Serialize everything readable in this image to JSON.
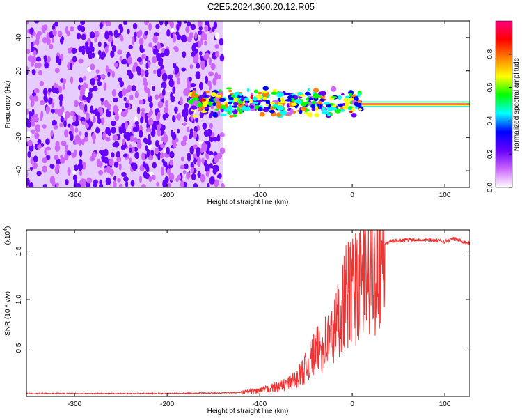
{
  "title": "C2E5.2024.360.20.12.R05",
  "chart_data": [
    {
      "type": "heatmap",
      "xlabel": "Height of straight line (km)",
      "ylabel": "Frequency (Hz)",
      "xlim": [
        -352,
        127
      ],
      "ylim": [
        -50,
        50
      ],
      "x_ticks": [
        -300,
        -200,
        -100,
        0,
        100
      ],
      "x_tick_labels": [
        "-300",
        "-200",
        "-100",
        "0",
        "100"
      ],
      "y_ticks": [
        40,
        20,
        0,
        -20,
        -40
      ],
      "y_tick_labels": [
        "40",
        "20",
        "0",
        "-20",
        "-40"
      ],
      "colorbar": {
        "label": "Normalized spectral amplitude",
        "range": [
          0.0,
          1.0
        ],
        "ticks": [
          0.0,
          0.2,
          0.4,
          0.6,
          0.8
        ],
        "tick_labels": [
          "0.0",
          "0.2",
          "0.4",
          "0.6",
          "0.8"
        ],
        "colors": [
          "#ffffff",
          "#cc66ff",
          "#6600ff",
          "#0000ff",
          "#00ffff",
          "#00ff00",
          "#ffff00",
          "#ff8000",
          "#ff0000",
          "#ff0080"
        ]
      },
      "regions": [
        {
          "x": [
            -352,
            -140
          ],
          "y": [
            -50,
            50
          ],
          "amplitude": 0.2,
          "kind": "noise"
        },
        {
          "x": [
            -175,
            10
          ],
          "y": [
            -8,
            10
          ],
          "amplitude": 0.4,
          "kind": "scintillation"
        },
        {
          "x": [
            10,
            127
          ],
          "y": [
            -1,
            1
          ],
          "amplitude": 1.0,
          "kind": "carrier"
        }
      ]
    },
    {
      "type": "line",
      "xlabel": "Height of straight line (km)",
      "ylabel": "SNR (10 * v/v)",
      "y_multiplier": "(x10",
      "y_exponent": "4",
      "y_multiplier_close": ")",
      "xlim": [
        -352,
        127
      ],
      "ylim": [
        0,
        1.72
      ],
      "x_ticks": [
        -300,
        -200,
        -100,
        0,
        100
      ],
      "x_tick_labels": [
        "-300",
        "-200",
        "-100",
        "0",
        "100"
      ],
      "y_ticks": [
        0.5,
        1.0,
        1.5
      ],
      "y_tick_labels": [
        "0.5",
        "1.0",
        "1.5"
      ],
      "series": [
        {
          "color": "#ee3333",
          "x": [
            -352,
            -300,
            -250,
            -200,
            -150,
            -120,
            -110,
            -100,
            -90,
            -80,
            -70,
            -60,
            -50,
            -40,
            -30,
            -20,
            -15,
            -10,
            -5,
            0,
            5,
            10,
            15,
            20,
            25,
            30,
            35,
            40,
            60,
            80,
            100,
            110,
            120,
            127
          ],
          "y": [
            0.03,
            0.03,
            0.03,
            0.03,
            0.035,
            0.04,
            0.05,
            0.06,
            0.08,
            0.1,
            0.13,
            0.18,
            0.3,
            0.45,
            0.55,
            0.65,
            0.8,
            0.95,
            1.05,
            1.1,
            1.15,
            1.2,
            1.25,
            1.3,
            1.4,
            1.5,
            1.57,
            1.6,
            1.62,
            1.62,
            1.6,
            1.63,
            1.6,
            1.58
          ]
        }
      ]
    }
  ]
}
